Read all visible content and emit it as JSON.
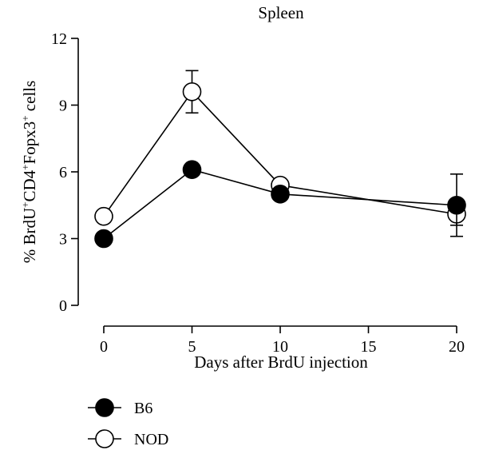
{
  "chart_data": {
    "type": "line",
    "title": "Spleen",
    "xlabel": "Days after BrdU injection",
    "ylabel": {
      "prefix": "% BrdU",
      "sup1": "+",
      "mid1": "CD4",
      "sup2": "+",
      "mid2": "Fopx3",
      "sup3": "+",
      "suffix": " cells"
    },
    "xlim": [
      -1,
      21
    ],
    "ylim": [
      0,
      12
    ],
    "xticks": [
      0,
      5,
      10,
      15,
      20
    ],
    "yticks": [
      0,
      3,
      6,
      9,
      12
    ],
    "grid": false,
    "legend_position": "bottom-left",
    "series": [
      {
        "name": "B6",
        "marker": "filled-circle",
        "color": "#000000",
        "x": [
          0,
          5,
          10,
          20
        ],
        "y": [
          3.0,
          6.1,
          5.0,
          4.5
        ],
        "error": [
          0,
          0,
          0,
          1.4
        ]
      },
      {
        "name": "NOD",
        "marker": "open-circle",
        "color": "#000000",
        "x": [
          0,
          5,
          10,
          20
        ],
        "y": [
          4.0,
          9.6,
          5.4,
          4.1
        ],
        "error": [
          0,
          0.95,
          0,
          0.5
        ]
      }
    ]
  }
}
